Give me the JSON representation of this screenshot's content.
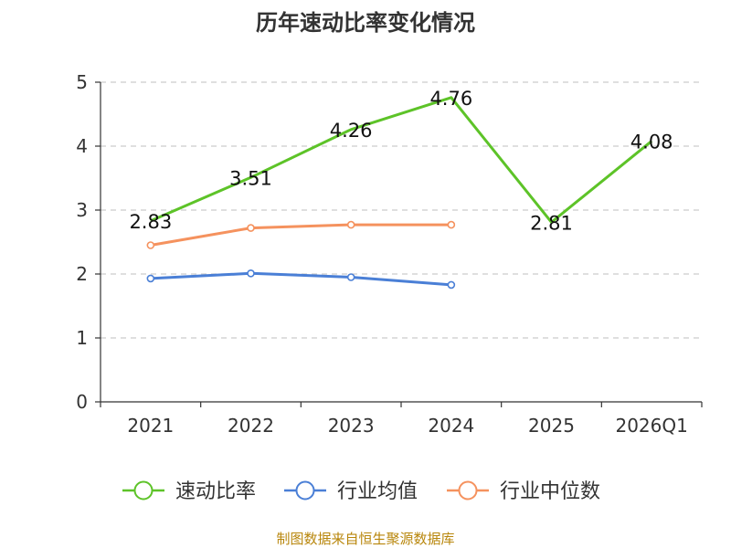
{
  "chart_data": {
    "type": "line",
    "title": "历年速动比率变化情况",
    "categories": [
      "2021",
      "2022",
      "2023",
      "2024",
      "2025",
      "2026Q1"
    ],
    "ylim": [
      0,
      5
    ],
    "yticks": [
      "0",
      "1",
      "2",
      "3",
      "4",
      "5"
    ],
    "grid": true,
    "legend_position": "bottom",
    "series": [
      {
        "name": "速动比率",
        "color": "#5dc328",
        "marker": "none",
        "show_labels": true,
        "values": [
          2.83,
          3.51,
          4.26,
          4.76,
          2.81,
          4.08
        ],
        "labels": [
          "2.83",
          "3.51",
          "4.26",
          "4.76",
          "2.81",
          "4.08"
        ]
      },
      {
        "name": "行业均值",
        "color": "#4a7fd6",
        "marker": "circle",
        "show_labels": false,
        "values": [
          1.93,
          2.01,
          1.95,
          1.83,
          null,
          null
        ]
      },
      {
        "name": "行业中位数",
        "color": "#f5925e",
        "marker": "circle",
        "show_labels": false,
        "values": [
          2.45,
          2.72,
          2.77,
          2.77,
          null,
          null
        ]
      }
    ],
    "source": "制图数据来自恒生聚源数据库"
  }
}
